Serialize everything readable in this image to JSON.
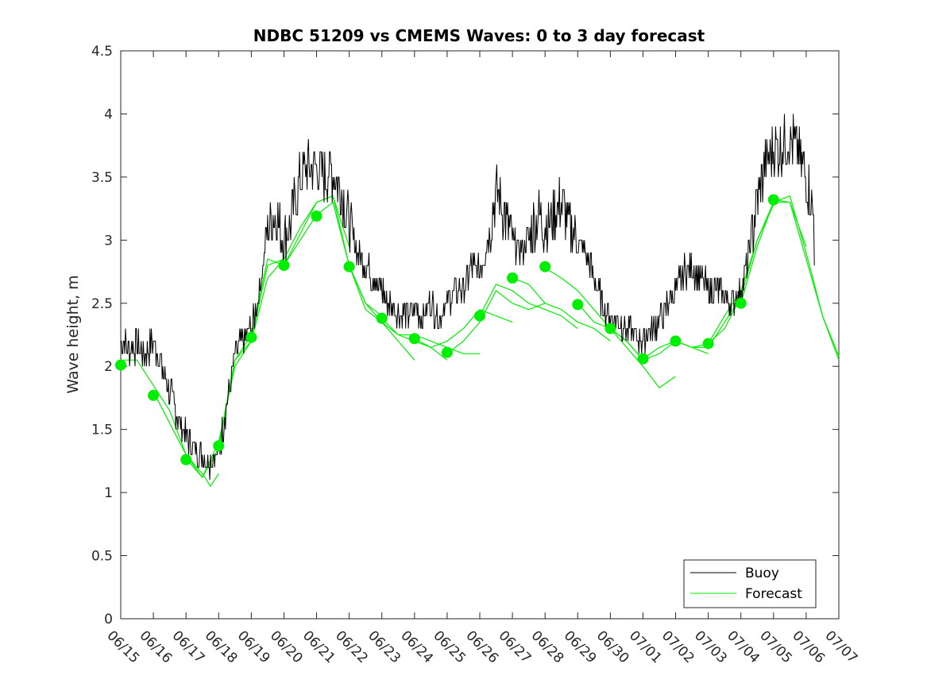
{
  "chart_data": {
    "type": "line",
    "title": "NDBC 51209 vs CMEMS Waves: 0 to 3 day forecast",
    "xlabel": "",
    "ylabel": "Wave height, m",
    "ylim": [
      0,
      4.5
    ],
    "yticks": [
      "0",
      "0.5",
      "1",
      "1.5",
      "2",
      "2.5",
      "3",
      "3.5",
      "4",
      "4.5"
    ],
    "xlim_days": [
      0,
      22
    ],
    "xticks": [
      "06/15",
      "06/16",
      "06/17",
      "06/18",
      "06/19",
      "06/20",
      "06/21",
      "06/22",
      "06/23",
      "06/24",
      "06/25",
      "06/26",
      "06/27",
      "06/28",
      "06/29",
      "06/30",
      "07/01",
      "07/02",
      "07/03",
      "07/04",
      "07/05",
      "07/06",
      "07/07"
    ],
    "legend": {
      "position": "bottom-right",
      "entries": [
        "Buoy",
        "Forecast"
      ]
    },
    "colors": {
      "buoy": "#000000",
      "forecast": "#00ee00"
    },
    "buoy": [
      [
        0.0,
        2.2
      ],
      [
        0.25,
        2.15
      ],
      [
        0.5,
        2.15
      ],
      [
        0.75,
        2.1
      ],
      [
        1.0,
        2.2
      ],
      [
        1.25,
        2.0
      ],
      [
        1.5,
        1.8
      ],
      [
        1.75,
        1.6
      ],
      [
        2.0,
        1.45
      ],
      [
        2.25,
        1.35
      ],
      [
        2.5,
        1.3
      ],
      [
        2.75,
        1.25
      ],
      [
        3.0,
        1.3
      ],
      [
        3.25,
        1.7
      ],
      [
        3.5,
        2.1
      ],
      [
        3.75,
        2.2
      ],
      [
        4.0,
        2.3
      ],
      [
        4.25,
        2.6
      ],
      [
        4.5,
        3.1
      ],
      [
        4.75,
        3.2
      ],
      [
        5.0,
        3.0
      ],
      [
        5.25,
        3.2
      ],
      [
        5.5,
        3.5
      ],
      [
        5.75,
        3.6
      ],
      [
        6.0,
        3.6
      ],
      [
        6.25,
        3.5
      ],
      [
        6.5,
        3.55
      ],
      [
        6.75,
        3.4
      ],
      [
        7.0,
        3.1
      ],
      [
        7.25,
        2.9
      ],
      [
        7.5,
        2.8
      ],
      [
        7.75,
        2.7
      ],
      [
        8.0,
        2.6
      ],
      [
        8.25,
        2.5
      ],
      [
        8.5,
        2.45
      ],
      [
        8.75,
        2.4
      ],
      [
        9.0,
        2.45
      ],
      [
        9.25,
        2.4
      ],
      [
        9.5,
        2.5
      ],
      [
        9.75,
        2.4
      ],
      [
        10.0,
        2.5
      ],
      [
        10.25,
        2.6
      ],
      [
        10.5,
        2.6
      ],
      [
        10.75,
        2.8
      ],
      [
        11.0,
        2.75
      ],
      [
        11.25,
        3.0
      ],
      [
        11.5,
        3.4
      ],
      [
        11.75,
        3.2
      ],
      [
        12.0,
        3.0
      ],
      [
        12.25,
        2.9
      ],
      [
        12.5,
        3.0
      ],
      [
        12.75,
        3.2
      ],
      [
        13.0,
        3.1
      ],
      [
        13.25,
        3.2
      ],
      [
        13.5,
        3.3
      ],
      [
        13.75,
        3.1
      ],
      [
        14.0,
        3.0
      ],
      [
        14.25,
        2.9
      ],
      [
        14.5,
        2.7
      ],
      [
        14.75,
        2.5
      ],
      [
        15.0,
        2.4
      ],
      [
        15.25,
        2.35
      ],
      [
        15.5,
        2.3
      ],
      [
        15.75,
        2.25
      ],
      [
        16.0,
        2.2
      ],
      [
        16.25,
        2.3
      ],
      [
        16.5,
        2.35
      ],
      [
        16.75,
        2.5
      ],
      [
        17.0,
        2.6
      ],
      [
        17.25,
        2.75
      ],
      [
        17.5,
        2.8
      ],
      [
        17.75,
        2.7
      ],
      [
        18.0,
        2.6
      ],
      [
        18.25,
        2.6
      ],
      [
        18.5,
        2.55
      ],
      [
        18.75,
        2.5
      ],
      [
        19.0,
        2.6
      ],
      [
        19.25,
        2.9
      ],
      [
        19.5,
        3.3
      ],
      [
        19.75,
        3.6
      ],
      [
        20.0,
        3.7
      ],
      [
        20.25,
        3.75
      ],
      [
        20.5,
        3.8
      ],
      [
        20.75,
        3.7
      ],
      [
        21.0,
        3.5
      ],
      [
        21.25,
        3.2
      ]
    ],
    "forecast_runs": [
      [
        [
          0.0,
          2.05
        ],
        [
          0.5,
          2.05
        ],
        [
          1.0,
          1.85
        ],
        [
          1.5,
          1.65
        ],
        [
          2.0,
          1.3
        ],
        [
          2.5,
          1.15
        ],
        [
          2.75,
          1.05
        ],
        [
          3.0,
          1.15
        ]
      ],
      [
        [
          1.0,
          1.8
        ],
        [
          1.5,
          1.55
        ],
        [
          2.0,
          1.3
        ],
        [
          2.5,
          1.12
        ],
        [
          3.0,
          1.35
        ],
        [
          3.5,
          2.05
        ],
        [
          4.0,
          2.2
        ]
      ],
      [
        [
          2.0,
          1.27
        ],
        [
          2.5,
          1.12
        ],
        [
          3.0,
          1.4
        ],
        [
          3.5,
          2.0
        ],
        [
          4.0,
          2.2
        ],
        [
          4.5,
          2.7
        ],
        [
          5.0,
          2.85
        ]
      ],
      [
        [
          3.0,
          1.38
        ],
        [
          3.5,
          2.05
        ],
        [
          4.0,
          2.25
        ],
        [
          4.5,
          2.85
        ],
        [
          5.0,
          2.8
        ],
        [
          5.5,
          3.0
        ],
        [
          6.0,
          3.2
        ]
      ],
      [
        [
          4.0,
          2.22
        ],
        [
          4.5,
          2.8
        ],
        [
          5.0,
          2.85
        ],
        [
          5.5,
          3.1
        ],
        [
          6.0,
          3.3
        ],
        [
          6.5,
          3.35
        ],
        [
          7.0,
          2.95
        ]
      ],
      [
        [
          5.0,
          2.8
        ],
        [
          5.5,
          3.05
        ],
        [
          6.0,
          3.3
        ],
        [
          6.5,
          3.35
        ],
        [
          7.0,
          2.8
        ],
        [
          7.5,
          2.5
        ],
        [
          8.0,
          2.4
        ]
      ],
      [
        [
          6.0,
          3.2
        ],
        [
          6.5,
          3.3
        ],
        [
          7.0,
          2.8
        ],
        [
          7.5,
          2.5
        ],
        [
          8.0,
          2.35
        ],
        [
          8.5,
          2.2
        ],
        [
          9.0,
          2.05
        ]
      ],
      [
        [
          7.0,
          2.8
        ],
        [
          7.5,
          2.45
        ],
        [
          8.0,
          2.35
        ],
        [
          8.5,
          2.25
        ],
        [
          9.0,
          2.2
        ],
        [
          9.5,
          2.15
        ],
        [
          10.0,
          2.05
        ]
      ],
      [
        [
          8.0,
          2.38
        ],
        [
          8.5,
          2.25
        ],
        [
          9.0,
          2.25
        ],
        [
          9.5,
          2.2
        ],
        [
          10.0,
          2.15
        ],
        [
          10.5,
          2.1
        ],
        [
          11.0,
          2.1
        ]
      ],
      [
        [
          9.0,
          2.22
        ],
        [
          9.5,
          2.15
        ],
        [
          10.0,
          2.2
        ],
        [
          10.5,
          2.3
        ],
        [
          11.0,
          2.45
        ],
        [
          11.5,
          2.4
        ],
        [
          12.0,
          2.35
        ]
      ],
      [
        [
          10.0,
          2.1
        ],
        [
          10.5,
          2.2
        ],
        [
          11.0,
          2.35
        ],
        [
          11.5,
          2.6
        ],
        [
          12.0,
          2.5
        ],
        [
          12.5,
          2.45
        ],
        [
          13.0,
          2.5
        ]
      ],
      [
        [
          11.0,
          2.4
        ],
        [
          11.5,
          2.65
        ],
        [
          12.0,
          2.6
        ],
        [
          12.5,
          2.5
        ],
        [
          13.0,
          2.45
        ],
        [
          13.5,
          2.4
        ],
        [
          14.0,
          2.3
        ]
      ],
      [
        [
          12.0,
          2.7
        ],
        [
          12.5,
          2.65
        ],
        [
          13.0,
          2.5
        ],
        [
          13.5,
          2.45
        ],
        [
          14.0,
          2.35
        ],
        [
          14.5,
          2.3
        ],
        [
          15.0,
          2.2
        ]
      ],
      [
        [
          13.0,
          2.78
        ],
        [
          13.5,
          2.7
        ],
        [
          14.0,
          2.6
        ],
        [
          14.5,
          2.45
        ],
        [
          15.0,
          2.3
        ],
        [
          15.5,
          2.2
        ],
        [
          16.0,
          2.05
        ]
      ],
      [
        [
          14.0,
          2.5
        ],
        [
          14.5,
          2.35
        ],
        [
          15.0,
          2.3
        ],
        [
          15.5,
          2.15
        ],
        [
          16.0,
          2.0
        ],
        [
          16.5,
          1.83
        ],
        [
          17.0,
          1.92
        ]
      ],
      [
        [
          15.0,
          2.3
        ],
        [
          15.5,
          2.2
        ],
        [
          16.0,
          2.05
        ],
        [
          16.5,
          2.1
        ],
        [
          17.0,
          2.2
        ],
        [
          17.5,
          2.15
        ],
        [
          18.0,
          2.1
        ]
      ],
      [
        [
          16.0,
          2.06
        ],
        [
          16.5,
          2.15
        ],
        [
          17.0,
          2.2
        ],
        [
          17.5,
          2.15
        ],
        [
          18.0,
          2.15
        ],
        [
          18.5,
          2.35
        ],
        [
          19.0,
          2.55
        ]
      ],
      [
        [
          17.0,
          2.2
        ],
        [
          17.5,
          2.15
        ],
        [
          18.0,
          2.18
        ],
        [
          18.5,
          2.4
        ],
        [
          19.0,
          2.6
        ],
        [
          19.5,
          3.0
        ],
        [
          20.0,
          3.28
        ]
      ],
      [
        [
          18.0,
          2.18
        ],
        [
          18.5,
          2.3
        ],
        [
          19.0,
          2.55
        ],
        [
          19.5,
          3.0
        ],
        [
          20.0,
          3.3
        ],
        [
          20.5,
          3.3
        ],
        [
          21.0,
          2.95
        ]
      ],
      [
        [
          19.0,
          2.5
        ],
        [
          19.5,
          2.95
        ],
        [
          20.0,
          3.3
        ],
        [
          20.5,
          3.35
        ],
        [
          21.0,
          2.9
        ],
        [
          21.5,
          2.4
        ],
        [
          22.0,
          2.05
        ]
      ],
      [
        [
          20.0,
          3.32
        ],
        [
          20.5,
          3.3
        ],
        [
          21.0,
          2.85
        ],
        [
          21.5,
          2.4
        ],
        [
          22.0,
          2.08
        ]
      ]
    ],
    "forecast_markers": [
      [
        0.0,
        2.01
      ],
      [
        1.0,
        1.77
      ],
      [
        2.0,
        1.26
      ],
      [
        3.0,
        1.37
      ],
      [
        4.0,
        2.23
      ],
      [
        5.0,
        2.8
      ],
      [
        6.0,
        3.19
      ],
      [
        7.0,
        2.79
      ],
      [
        8.0,
        2.38
      ],
      [
        9.0,
        2.22
      ],
      [
        10.0,
        2.11
      ],
      [
        11.0,
        2.4
      ],
      [
        12.0,
        2.7
      ],
      [
        13.0,
        2.79
      ],
      [
        14.0,
        2.49
      ],
      [
        15.0,
        2.3
      ],
      [
        16.0,
        2.06
      ],
      [
        17.0,
        2.2
      ],
      [
        18.0,
        2.18
      ],
      [
        19.0,
        2.5
      ],
      [
        20.0,
        3.32
      ]
    ]
  }
}
